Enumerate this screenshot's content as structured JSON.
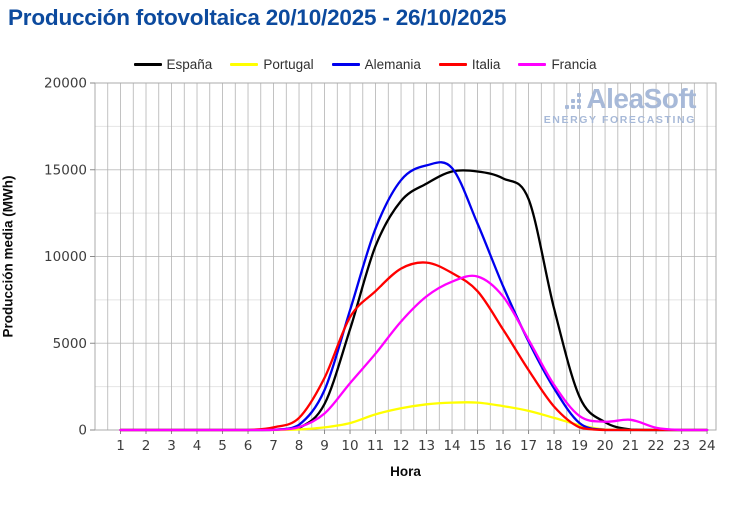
{
  "title": "Producción fotovoltaica 20/10/2025 - 26/10/2025",
  "watermark": {
    "brand": "AleaSoft",
    "tagline": "ENERGY FORECASTING"
  },
  "colors": {
    "title": "#0c4a9e",
    "logo": "#a7b9d8",
    "tick_text": "#3d3d3d",
    "grid_vertical": "#b3b3b3",
    "grid_major": "#c6c6c6",
    "grid_minor": "#e4e4e4",
    "plot_border": "#ababab"
  },
  "chart_data": {
    "type": "line",
    "title": "Producción fotovoltaica 20/10/2025 - 26/10/2025",
    "xlabel": "Hora",
    "ylabel": "Producción media (MWh)",
    "x": [
      1,
      2,
      3,
      4,
      5,
      6,
      7,
      8,
      9,
      10,
      11,
      12,
      13,
      14,
      15,
      16,
      17,
      18,
      19,
      20,
      21,
      22,
      23,
      24
    ],
    "xlim": [
      0,
      24.35
    ],
    "ylim": [
      0,
      20000
    ],
    "y_ticks": [
      0,
      5000,
      10000,
      15000,
      20000
    ],
    "y_minor_grid_step": 2500,
    "x_grid_step": 0.5,
    "grid": true,
    "legend_position": "top",
    "units": "MWh",
    "series": [
      {
        "name": "España",
        "color": "#000000",
        "values": [
          0,
          0,
          0,
          0,
          0,
          0,
          20,
          120,
          1500,
          5800,
          10600,
          13200,
          14200,
          14900,
          14900,
          14500,
          13300,
          7000,
          1900,
          450,
          30,
          0,
          0,
          0
        ]
      },
      {
        "name": "Portugal",
        "color": "#ffff00",
        "values": [
          0,
          0,
          0,
          0,
          0,
          0,
          0,
          30,
          150,
          400,
          900,
          1250,
          1480,
          1580,
          1580,
          1380,
          1100,
          700,
          280,
          30,
          0,
          0,
          0,
          0
        ]
      },
      {
        "name": "Alemania",
        "color": "#0000ee",
        "values": [
          0,
          0,
          0,
          0,
          0,
          0,
          10,
          300,
          2300,
          6900,
          11600,
          14400,
          15250,
          15100,
          11900,
          8300,
          5100,
          2400,
          400,
          0,
          0,
          0,
          0,
          0
        ]
      },
      {
        "name": "Italia",
        "color": "#ff0000",
        "values": [
          0,
          0,
          0,
          0,
          0,
          0,
          150,
          700,
          3000,
          6500,
          8000,
          9300,
          9650,
          9050,
          8000,
          5800,
          3450,
          1350,
          150,
          0,
          0,
          0,
          0,
          0
        ]
      },
      {
        "name": "Francia",
        "color": "#ff00ff",
        "values": [
          0,
          0,
          0,
          0,
          0,
          0,
          10,
          160,
          950,
          2700,
          4400,
          6250,
          7700,
          8550,
          8850,
          7700,
          5200,
          2600,
          800,
          480,
          590,
          130,
          0,
          0
        ]
      }
    ]
  }
}
